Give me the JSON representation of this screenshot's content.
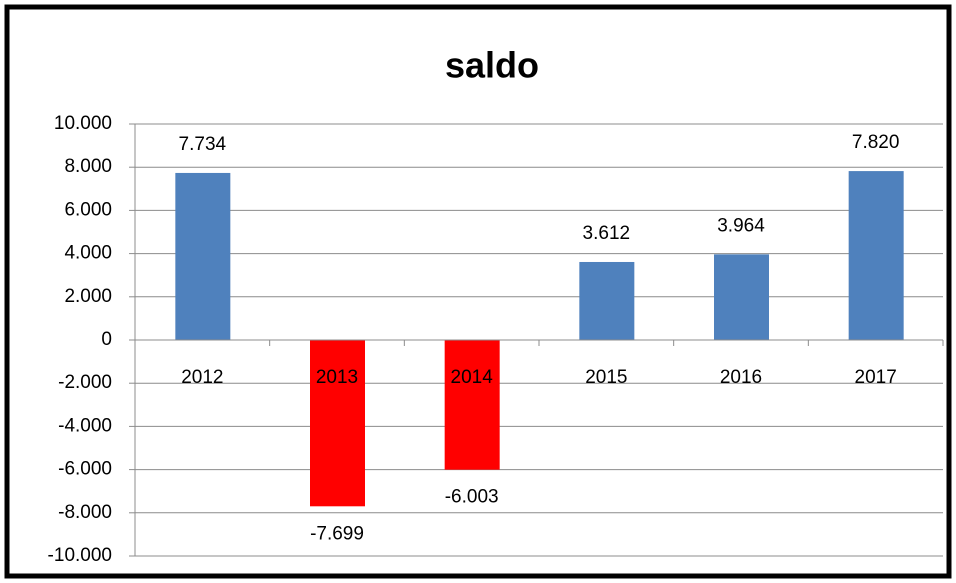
{
  "chart_data": {
    "type": "bar",
    "title": "saldo",
    "categories": [
      "2012",
      "2013",
      "2014",
      "2015",
      "2016",
      "2017"
    ],
    "values": [
      7734,
      -7699,
      -6003,
      3612,
      3964,
      7820
    ],
    "value_labels": [
      "7.734",
      "-7.699",
      "-6.003",
      "3.612",
      "3.964",
      "7.820"
    ],
    "colors": [
      "#4f81bd",
      "#ff0000",
      "#ff0000",
      "#4f81bd",
      "#4f81bd",
      "#4f81bd"
    ],
    "ylim": [
      -10000,
      10000
    ],
    "yticks": [
      {
        "value": -10000,
        "label": "-10.000"
      },
      {
        "value": -8000,
        "label": "-8.000"
      },
      {
        "value": -6000,
        "label": "-6.000"
      },
      {
        "value": -4000,
        "label": "-4.000"
      },
      {
        "value": -2000,
        "label": "-2.000"
      },
      0,
      {
        "value": 2000,
        "label": "2.000"
      },
      {
        "value": 4000,
        "label": "4.000"
      },
      {
        "value": 6000,
        "label": "6.000"
      },
      {
        "value": 8000,
        "label": "8.000"
      },
      {
        "value": 10000,
        "label": "10.000"
      }
    ],
    "grid": true
  }
}
